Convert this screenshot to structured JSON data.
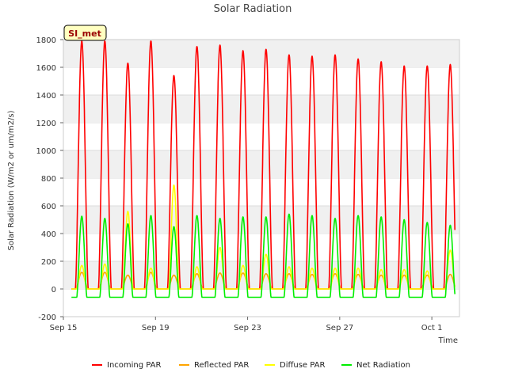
{
  "chart_data": {
    "type": "line",
    "title": "Solar Radiation",
    "site_badge": "SI_met",
    "xlabel": "Time",
    "ylabel": "Solar Radiation (W/m2 or um/m2/s)",
    "ylim": [
      -200,
      1800
    ],
    "yticks": [
      -200,
      0,
      200,
      400,
      600,
      800,
      1000,
      1200,
      1400,
      1600,
      1800
    ],
    "xlim_days": [
      0,
      17.2
    ],
    "xtick_days": [
      0,
      4,
      8,
      12,
      16
    ],
    "xtick_labels": [
      "Sep 15",
      "Sep 19",
      "Sep 23",
      "Sep 27",
      "Oct 1"
    ],
    "x_axis_note": "x values are day offsets from Sep 15 00:00",
    "grid": "horizontal bands",
    "legend_position": "bottom",
    "colors": {
      "Incoming PAR": "#ff0000",
      "Reflected PAR": "#ffa500",
      "Diffuse PAR": "#ffff00",
      "Net Radiation": "#00ee00",
      "band": "#f0f0f0",
      "badge_bg": "#ffffc0",
      "badge_text": "#990000"
    },
    "daily_peaks": {
      "days": [
        0.8,
        1.8,
        2.8,
        3.8,
        4.8,
        5.8,
        6.8,
        7.8,
        8.8,
        9.8,
        10.8,
        11.8,
        12.8,
        13.8,
        14.8,
        15.8,
        16.8
      ],
      "series": [
        {
          "name": "Incoming PAR",
          "values": [
            1790,
            1790,
            1630,
            1790,
            1540,
            1750,
            1760,
            1720,
            1730,
            1690,
            1680,
            1690,
            1660,
            1640,
            1610,
            1610,
            1620
          ]
        },
        {
          "name": "Reflected PAR",
          "values": [
            120,
            120,
            100,
            120,
            100,
            110,
            115,
            115,
            110,
            110,
            105,
            110,
            105,
            100,
            100,
            100,
            105
          ]
        },
        {
          "name": "Diffuse PAR",
          "values": [
            170,
            180,
            560,
            150,
            750,
            160,
            300,
            170,
            250,
            160,
            150,
            150,
            150,
            140,
            140,
            130,
            280
          ]
        },
        {
          "name": "Net Radiation",
          "values": [
            525,
            510,
            470,
            530,
            450,
            530,
            510,
            520,
            520,
            540,
            530,
            510,
            530,
            520,
            500,
            480,
            460
          ]
        }
      ],
      "net_radiation_night": -60
    }
  },
  "legend": {
    "items": [
      {
        "label": "Incoming PAR",
        "color": "#ff0000"
      },
      {
        "label": "Reflected PAR",
        "color": "#ffa500"
      },
      {
        "label": "Diffuse PAR",
        "color": "#ffff00"
      },
      {
        "label": "Net Radiation",
        "color": "#00ee00"
      }
    ]
  }
}
